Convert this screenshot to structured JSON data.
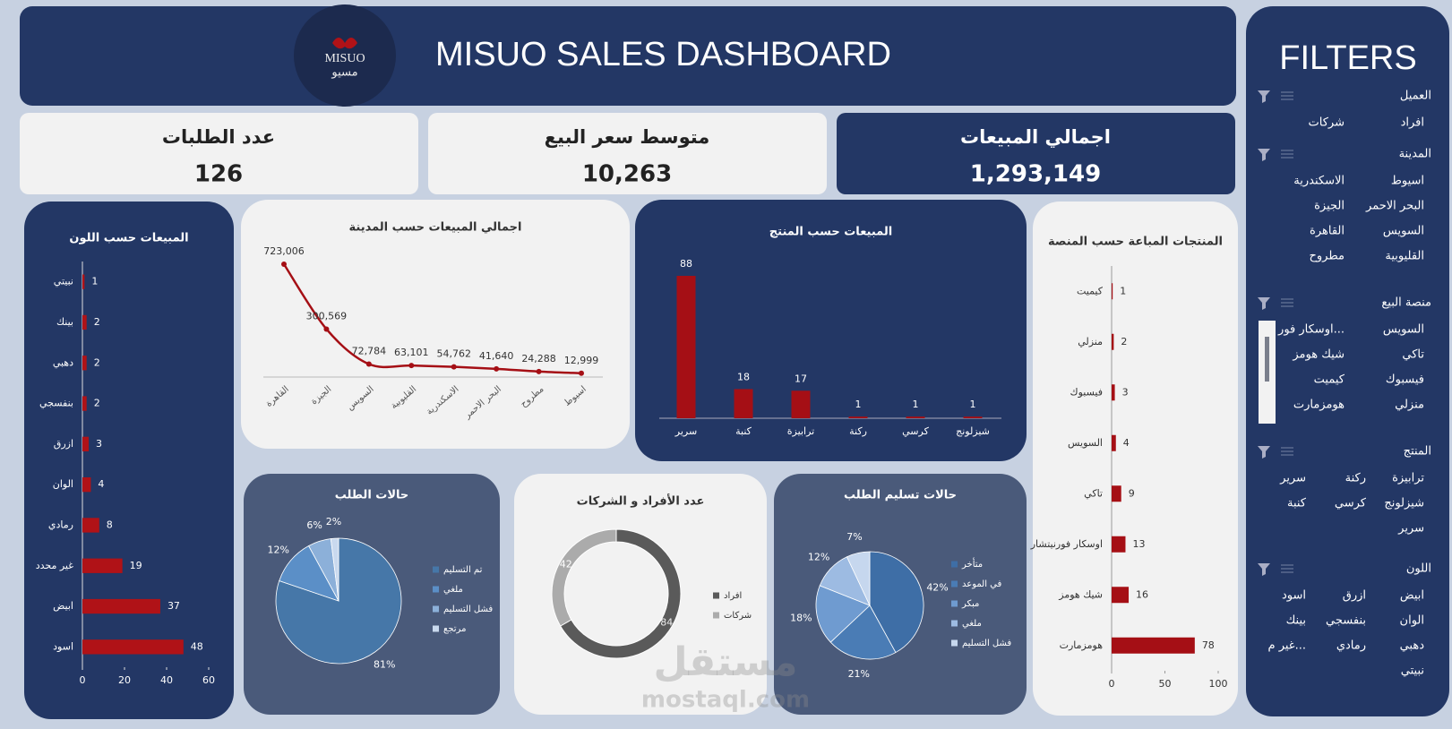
{
  "header": {
    "title": "MISUO SALES DASHBOARD",
    "logo": [
      "MISUO",
      "مسيو"
    ]
  },
  "kpis": [
    {
      "label": "عدد الطلبات",
      "value": "126"
    },
    {
      "label": "متوسط سعر البيع",
      "value": "10,263"
    },
    {
      "label": "اجمالي المبيعات",
      "value": "1,293,149"
    }
  ],
  "filters": {
    "title": "FILTERS",
    "groups": [
      {
        "name": "العميل",
        "items": [
          "افراد",
          "شركات"
        ]
      },
      {
        "name": "المدينة",
        "items": [
          "اسيوط",
          "الاسكندرية",
          "البحر الاحمر",
          "الجيزة",
          "السويس",
          "القاهرة",
          "القليوبية",
          "مطروح"
        ]
      },
      {
        "name": "منصة البيع",
        "items": [
          "السويس",
          "اوسكار فور...",
          "تاكي",
          "شيك هومز",
          "فيسبوك",
          "كيميت",
          "منزلي",
          "هومزمارت"
        ]
      },
      {
        "name": "المنتج",
        "items": [
          "ترابيزة",
          "ركنة",
          "سرير",
          "شيزلونج",
          "كرسي",
          "كنبة",
          "سرير"
        ]
      },
      {
        "name": "اللون",
        "items": [
          "ابيض",
          "ازرق",
          "اسود",
          "الوان",
          "بنفسجي",
          "بينك",
          "دهبي",
          "رمادي",
          "غير م...",
          "نبيتي"
        ]
      }
    ]
  },
  "chart_data": [
    {
      "type": "hbar",
      "title": "المبيعات حسب اللون",
      "categories": [
        "نبيتي",
        "بينك",
        "دهبي",
        "بنفسجي",
        "ازرق",
        "الوان",
        "رمادي",
        "غير محدد",
        "ابيض",
        "اسود"
      ],
      "values": [
        1,
        2,
        2,
        2,
        3,
        4,
        8,
        19,
        37,
        48
      ],
      "color": "#b01217",
      "xlim": [
        0,
        60
      ],
      "xticks": [
        0,
        20,
        40,
        60
      ]
    },
    {
      "type": "line",
      "title": "اجمالي المبيعات حسب المدينة",
      "categories": [
        "القاهرة",
        "الجيزة",
        "السويس",
        "القليوبية",
        "الاسكندرية",
        "البحر الاحمر",
        "مطروح",
        "اسيوط"
      ],
      "values": [
        723006,
        300569,
        72784,
        63101,
        54762,
        41640,
        24288,
        12999
      ],
      "value_labels": [
        "723,006",
        "300,569",
        "72,784",
        "63,101",
        "54,762",
        "41,640",
        "24,288",
        "12,999"
      ],
      "color": "#a50f15"
    },
    {
      "type": "bar",
      "title": "المبيعات حسب المنتج",
      "categories": [
        "سرير",
        "كنبة",
        "ترابيزة",
        "ركنة",
        "كرسي",
        "شيزلونج"
      ],
      "values": [
        88,
        18,
        17,
        1,
        1,
        1
      ],
      "color": "#a50f15"
    },
    {
      "type": "hbar",
      "title": "المنتجات المباعة حسب المنصة",
      "categories": [
        "كيميت",
        "منزلي",
        "فيسبوك",
        "السويس",
        "تاكي",
        "اوسكار فورنيتشار",
        "شيك هومز",
        "هومزمارت"
      ],
      "values": [
        1,
        2,
        3,
        4,
        9,
        13,
        16,
        78
      ],
      "color": "#a50f15",
      "xlim": [
        0,
        100
      ],
      "xticks": [
        0,
        50,
        100
      ]
    },
    {
      "type": "pie",
      "title": "حالات الطلب",
      "categories": [
        "تم التسليم",
        "ملغي",
        "فشل التسليم",
        "مرتجع"
      ],
      "values": [
        81,
        12,
        6,
        2
      ],
      "value_labels": [
        "81%",
        "12%",
        "6%",
        "2%"
      ],
      "colors": [
        "#4677a8",
        "#5b8fc7",
        "#8cb0d9",
        "#c9d9ee"
      ]
    },
    {
      "type": "donut",
      "title": "عدد الأفراد و الشركات",
      "categories": [
        "افراد",
        "شركات"
      ],
      "values": [
        84,
        42
      ],
      "colors": [
        "#5a5a5a",
        "#ababab"
      ]
    },
    {
      "type": "pie",
      "title": "حالات تسليم الطلب",
      "categories": [
        "متأخر",
        "في الموعد",
        "مبكر",
        "ملغي",
        "فشل التسليم"
      ],
      "values": [
        42,
        21,
        18,
        12,
        7
      ],
      "value_labels": [
        "42%",
        "21%",
        "18%",
        "12%",
        "7%"
      ],
      "colors": [
        "#3e6ea6",
        "#4a7cb5",
        "#6f9bd0",
        "#9dbbe2",
        "#c6d7ee"
      ]
    }
  ],
  "watermark": [
    "مستقل",
    "mostaql.com"
  ]
}
